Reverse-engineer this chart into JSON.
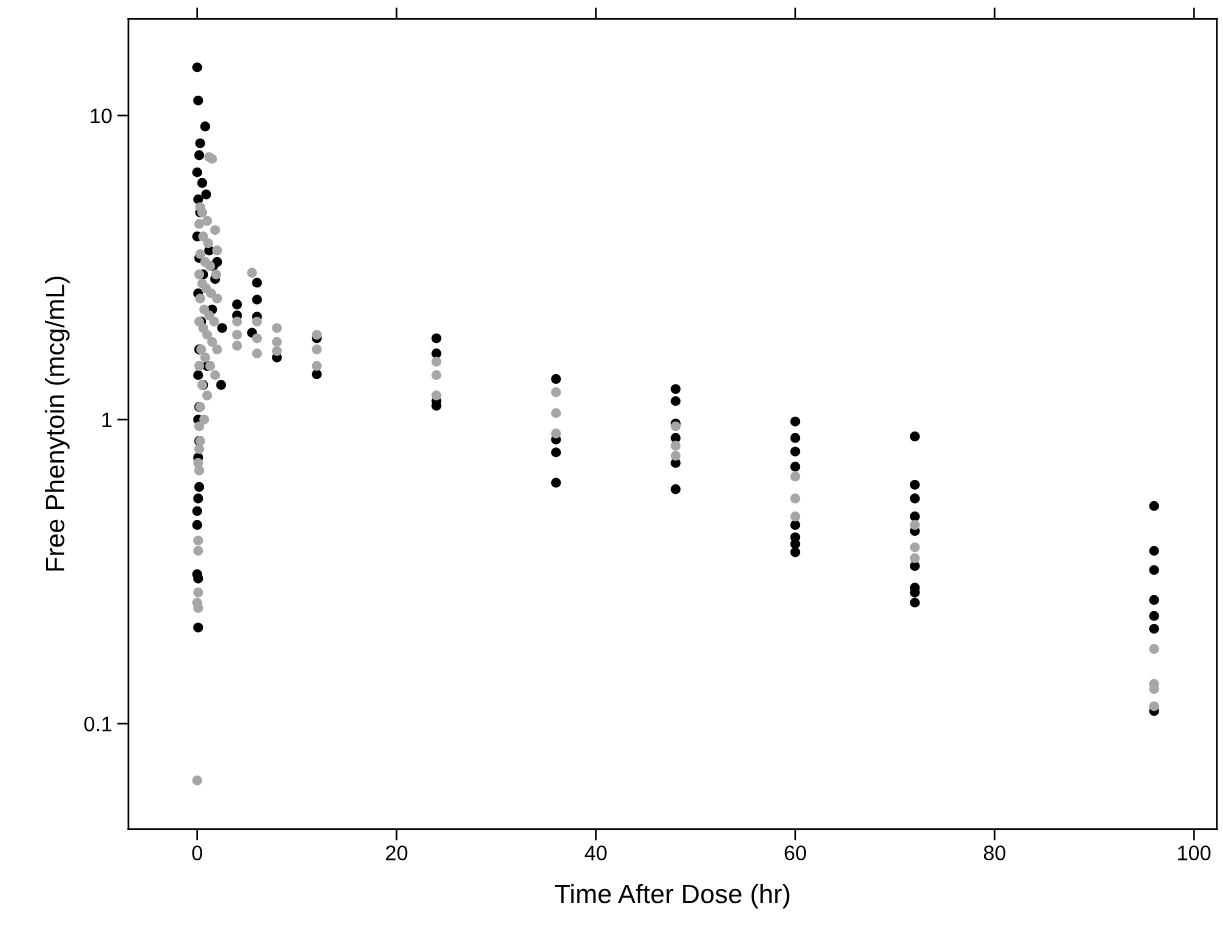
{
  "chart_data": {
    "type": "scatter",
    "xlabel": "Time After Dose (hr)",
    "ylabel": "Free Phenytoin (mcg/mL)",
    "log": "y",
    "xlim": [
      -6.9,
      102.3
    ],
    "ylim": [
      0.045,
      20.8
    ],
    "xticks": [
      0,
      20,
      40,
      60,
      80,
      100
    ],
    "yticks": [
      {
        "value": 0.1,
        "label": "0.1"
      },
      1,
      10
    ],
    "grid": false,
    "marker": "circle",
    "series": [
      {
        "color": "#000000",
        "x": [
          0,
          0.1,
          0.8,
          0.3,
          0.2,
          0,
          0.5,
          0.1,
          0.3,
          0.9,
          0,
          0.2,
          0.6,
          1.2,
          1.6,
          0.1,
          0.4,
          2.0,
          1.8,
          0.2,
          0.1,
          0.6,
          1.0,
          0.2,
          0.1,
          0.2,
          0.1,
          0.2,
          0.1,
          0,
          0,
          0,
          0.1,
          0.1,
          1.5,
          2.5,
          2.4,
          4,
          4,
          5.5,
          6,
          6,
          6,
          8,
          12,
          12,
          24,
          24,
          24,
          24,
          36,
          36,
          36,
          36,
          48,
          48,
          48,
          48,
          48,
          48,
          60,
          60,
          60,
          60,
          60,
          60,
          60,
          60,
          72,
          72,
          72,
          72,
          72,
          72,
          72,
          72,
          72,
          96,
          96,
          96,
          96,
          96,
          96,
          96
        ],
        "values": [
          14.4,
          11.2,
          9.2,
          8.1,
          7.4,
          6.5,
          6.0,
          5.3,
          4.8,
          5.5,
          4.0,
          3.4,
          3.0,
          3.6,
          3.2,
          2.6,
          2.1,
          3.3,
          2.9,
          1.7,
          1.4,
          1.3,
          1.5,
          1.1,
          1.0,
          0.85,
          0.75,
          0.6,
          0.55,
          0.5,
          0.45,
          0.31,
          0.3,
          0.207,
          2.3,
          2.0,
          1.3,
          2.39,
          2.2,
          1.93,
          2.82,
          2.48,
          2.18,
          1.6,
          1.41,
          1.85,
          1.85,
          1.65,
          1.15,
          1.11,
          1.36,
          0.86,
          0.78,
          0.62,
          1.26,
          1.15,
          0.97,
          0.87,
          0.72,
          0.59,
          0.985,
          0.87,
          0.785,
          0.7,
          0.45,
          0.41,
          0.39,
          0.366,
          0.88,
          0.61,
          0.55,
          0.48,
          0.43,
          0.33,
          0.28,
          0.27,
          0.25,
          0.52,
          0.37,
          0.32,
          0.255,
          0.226,
          0.205,
          0.11
        ]
      },
      {
        "color": "#a6a6a6",
        "x": [
          1.2,
          1.5,
          0.3,
          0.5,
          1.0,
          1.8,
          0.2,
          0.6,
          1.1,
          2.0,
          0.3,
          0.8,
          1.3,
          1.9,
          0.2,
          0.5,
          0.9,
          1.4,
          2.0,
          0.3,
          0.7,
          1.2,
          1.7,
          0.2,
          0.6,
          1.0,
          1.5,
          2.0,
          0.4,
          0.8,
          1.3,
          1.8,
          0.2,
          0.5,
          1.0,
          0.3,
          0.7,
          0.2,
          0.3,
          0.2,
          0.1,
          0.2,
          0.1,
          0.1,
          0.1,
          0,
          0.1,
          0,
          5.5,
          4,
          4,
          4,
          6,
          6,
          6,
          8,
          8,
          8,
          12,
          12,
          12,
          24,
          24,
          24,
          36,
          36,
          36,
          48,
          48,
          48,
          60,
          60,
          60,
          72,
          72,
          72,
          96,
          96,
          96,
          96
        ],
        "values": [
          7.3,
          7.2,
          5.0,
          4.8,
          4.5,
          4.2,
          4.4,
          4.0,
          3.8,
          3.6,
          3.5,
          3.3,
          3.2,
          3.0,
          3.0,
          2.8,
          2.7,
          2.6,
          2.5,
          2.5,
          2.3,
          2.2,
          2.1,
          2.1,
          2.0,
          1.9,
          1.8,
          1.7,
          1.7,
          1.6,
          1.5,
          1.4,
          1.5,
          1.3,
          1.2,
          1.1,
          1.0,
          0.95,
          0.85,
          0.8,
          0.72,
          0.68,
          0.4,
          0.37,
          0.27,
          0.25,
          0.24,
          0.065,
          3.04,
          2.1,
          1.9,
          1.75,
          2.1,
          1.85,
          1.65,
          2.0,
          1.8,
          1.68,
          1.9,
          1.7,
          1.5,
          1.55,
          1.4,
          1.2,
          1.23,
          1.05,
          0.9,
          0.95,
          0.82,
          0.76,
          0.65,
          0.55,
          0.48,
          0.45,
          0.38,
          0.35,
          0.176,
          0.135,
          0.13,
          0.114
        ]
      }
    ]
  }
}
